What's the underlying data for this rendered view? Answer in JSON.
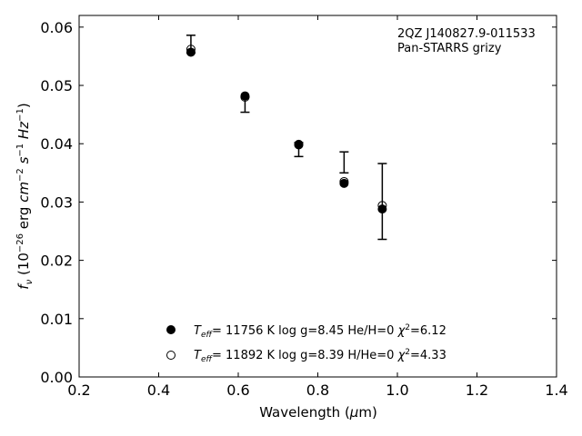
{
  "chart_data": {
    "type": "scatter",
    "xlabel": "Wavelength (μm)",
    "ylabel": "f_ν (10^-26 erg cm^-2 s^-1 Hz^-1)",
    "xlim": [
      0.2,
      1.4
    ],
    "ylim": [
      0.0,
      0.062
    ],
    "xticks": [
      "0.2",
      "0.4",
      "0.6",
      "0.8",
      "1.0",
      "1.2",
      "1.4"
    ],
    "yticks": [
      "0.00",
      "0.01",
      "0.02",
      "0.03",
      "0.04",
      "0.05",
      "0.06"
    ],
    "grid": false,
    "annotations": [
      "2QZ J140827.9-011533",
      "Pan-STARRS grizy"
    ],
    "observed": {
      "x": [
        0.481,
        0.617,
        0.752,
        0.866,
        0.962
      ],
      "y": [
        0.0571,
        0.0467,
        0.039,
        0.0368,
        0.0301
      ],
      "yerr": [
        0.0015,
        0.0013,
        0.0012,
        0.0018,
        0.0065
      ]
    },
    "series": [
      {
        "name": "Teff= 11756 K  log g=8.45  He/H=0  χ2=6.12",
        "marker": "filled-circle",
        "x": [
          0.481,
          0.617,
          0.752,
          0.866,
          0.962
        ],
        "y": [
          0.0557,
          0.0482,
          0.0399,
          0.0332,
          0.0288
        ]
      },
      {
        "name": "Teff= 11892 K  log g=8.39  H/He=0  χ2=4.33",
        "marker": "open-circle",
        "x": [
          0.481,
          0.617,
          0.752,
          0.866,
          0.962
        ],
        "y": [
          0.0562,
          0.048,
          0.0398,
          0.0335,
          0.0294
        ]
      }
    ],
    "legend_position": "lower-center"
  }
}
